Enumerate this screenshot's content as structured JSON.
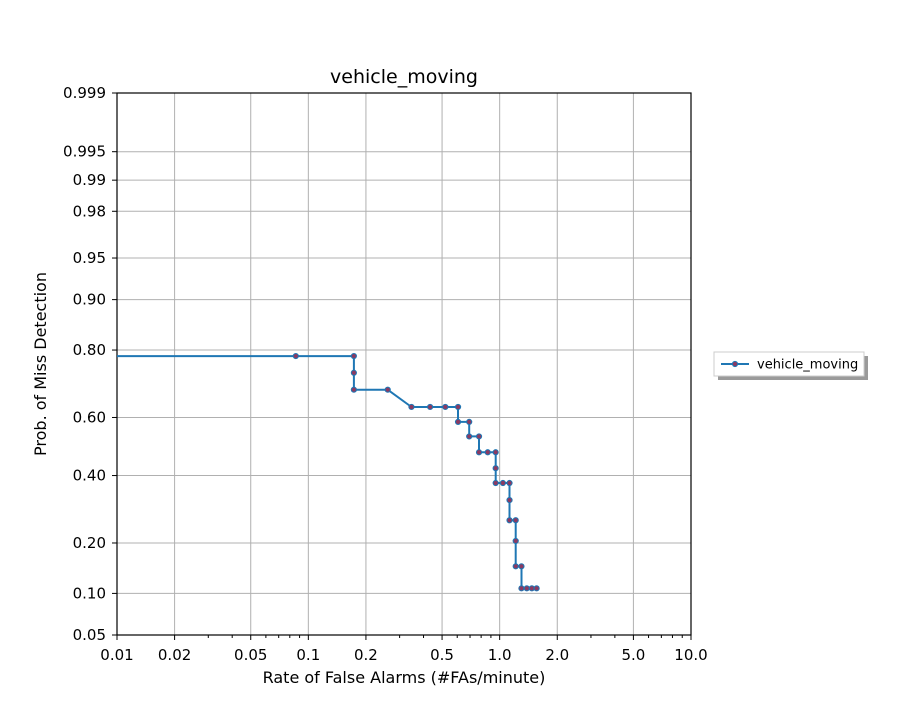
{
  "chart_data": {
    "type": "line",
    "title": "vehicle_moving",
    "xlabel": "Rate of False Alarms (#FAs/minute)",
    "ylabel": "Prob. of Miss Detection",
    "x_scale": "log",
    "y_scale": "normal-deviate",
    "xlim": [
      0.01,
      10.0
    ],
    "ylim": [
      0.05,
      0.999
    ],
    "grid": true,
    "legend_position": "outside-right",
    "x_ticks": [
      0.01,
      0.02,
      0.05,
      0.1,
      0.2,
      0.5,
      1.0,
      2.0,
      5.0,
      10.0
    ],
    "x_tick_labels": [
      "0.01",
      "0.02",
      "0.05",
      "0.1",
      "0.2",
      "0.5",
      "1.0",
      "2.0",
      "5.0",
      "10.0"
    ],
    "y_ticks": [
      0.05,
      0.1,
      0.2,
      0.4,
      0.6,
      0.8,
      0.9,
      0.95,
      0.98,
      0.99,
      0.995,
      0.999
    ],
    "y_tick_labels": [
      "0.05",
      "0.10",
      "0.20",
      "0.40",
      "0.60",
      "0.80",
      "0.90",
      "0.95",
      "0.98",
      "0.99",
      "0.995",
      "0.999"
    ],
    "series": [
      {
        "name": "vehicle_moving",
        "color": "#1f77b4",
        "marker_color": "#8b3a62",
        "x": [
          0.01,
          0.086,
          0.173,
          0.173,
          0.173,
          0.26,
          0.346,
          0.433,
          0.52,
          0.606,
          0.606,
          0.693,
          0.693,
          0.78,
          0.78,
          0.866,
          0.953,
          0.953,
          0.953,
          1.04,
          1.126,
          1.126,
          1.126,
          1.213,
          1.213,
          1.213,
          1.3,
          1.3,
          1.386,
          1.473,
          1.56
        ],
        "y": [
          0.785,
          0.785,
          0.785,
          0.74,
          0.69,
          0.69,
          0.635,
          0.635,
          0.635,
          0.635,
          0.585,
          0.585,
          0.535,
          0.535,
          0.48,
          0.48,
          0.48,
          0.425,
          0.375,
          0.375,
          0.375,
          0.32,
          0.26,
          0.26,
          0.205,
          0.148,
          0.148,
          0.108,
          0.108,
          0.108,
          0.108
        ],
        "marker_flags": [
          0,
          1,
          1,
          1,
          1,
          1,
          1,
          1,
          1,
          1,
          1,
          1,
          1,
          1,
          1,
          1,
          1,
          1,
          1,
          1,
          1,
          1,
          1,
          1,
          1,
          1,
          1,
          1,
          1,
          1,
          1
        ]
      }
    ]
  }
}
